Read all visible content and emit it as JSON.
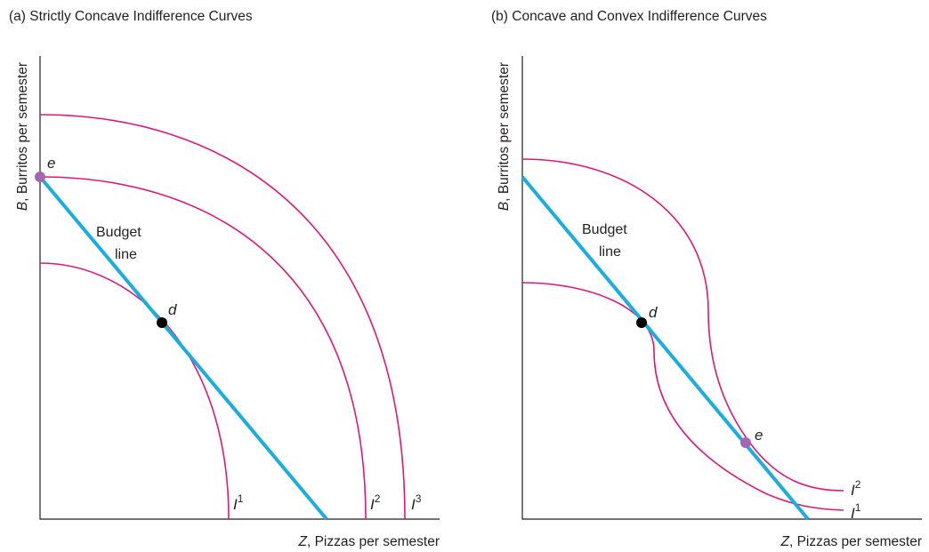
{
  "panels": [
    {
      "title": "(a) Strictly Concave Indifference Curves",
      "x_axis": {
        "var": "Z",
        "label": ", Pizzas per semester"
      },
      "y_axis": {
        "var": "B",
        "label": ", Burritos per semester"
      },
      "budget_label": [
        "Budget",
        "line"
      ],
      "points": [
        {
          "label": "e"
        },
        {
          "label": "d"
        }
      ],
      "curves": [
        {
          "base": "I",
          "sup": "1"
        },
        {
          "base": "I",
          "sup": "2"
        },
        {
          "base": "I",
          "sup": "3"
        }
      ]
    },
    {
      "title": "(b) Concave and Convex Indifference Curves",
      "x_axis": {
        "var": "Z",
        "label": ", Pizzas per semester"
      },
      "y_axis": {
        "var": "B",
        "label": ", Burritos per semester"
      },
      "budget_label": [
        "Budget",
        "line"
      ],
      "points": [
        {
          "label": "d"
        },
        {
          "label": "e"
        }
      ],
      "curves": [
        {
          "base": "I",
          "sup": "2"
        },
        {
          "base": "I",
          "sup": "1"
        }
      ]
    }
  ],
  "chart_data": [
    {
      "type": "line",
      "title": "(a) Strictly Concave Indifference Curves",
      "xlabel": "Z, Pizzas per semester",
      "ylabel": "B, Burritos per semester",
      "series": [
        {
          "name": "Budget line",
          "kind": "budget"
        },
        {
          "name": "I1",
          "kind": "indifference",
          "shape": "concave"
        },
        {
          "name": "I2",
          "kind": "indifference",
          "shape": "concave"
        },
        {
          "name": "I3",
          "kind": "indifference",
          "shape": "concave"
        }
      ],
      "points": [
        {
          "name": "e",
          "on": [
            "Budget line",
            "I2"
          ],
          "position": "vertical intercept of budget line"
        },
        {
          "name": "d",
          "on": [
            "Budget line",
            "I1"
          ],
          "position": "tangency"
        }
      ],
      "colors": {
        "budget": "#1aaee0",
        "indifference": "#e0177a",
        "point_e": "#a566b0",
        "point_d": "#000000"
      }
    },
    {
      "type": "line",
      "title": "(b) Concave and Convex Indifference Curves",
      "xlabel": "Z, Pizzas per semester",
      "ylabel": "B, Burritos per semester",
      "series": [
        {
          "name": "Budget line",
          "kind": "budget"
        },
        {
          "name": "I1",
          "kind": "indifference",
          "shape": "concave then convex"
        },
        {
          "name": "I2",
          "kind": "indifference",
          "shape": "concave then convex"
        }
      ],
      "points": [
        {
          "name": "d",
          "on": [
            "Budget line",
            "I1"
          ],
          "position": "tangency on concave part"
        },
        {
          "name": "e",
          "on": [
            "Budget line",
            "I2"
          ],
          "position": "tangency on convex part"
        }
      ],
      "colors": {
        "budget": "#1aaee0",
        "indifference": "#e0177a",
        "point_e": "#a566b0",
        "point_d": "#000000"
      }
    }
  ]
}
